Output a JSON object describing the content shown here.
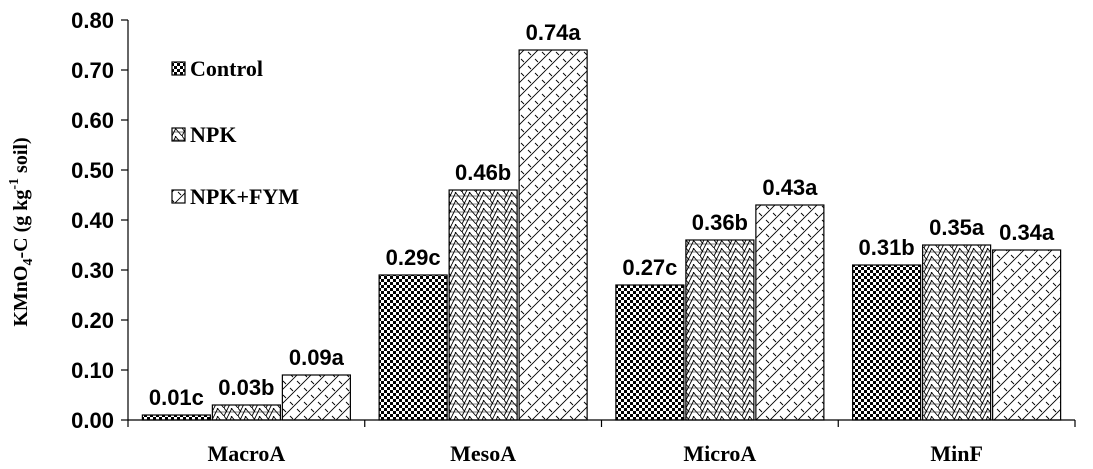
{
  "chart_data": {
    "type": "bar",
    "categories": [
      "MacroA",
      "MesoA",
      "MicroA",
      "MinF"
    ],
    "series": [
      {
        "name": "Control",
        "values": [
          0.01,
          0.29,
          0.27,
          0.31
        ],
        "labels": [
          "0.01c",
          "0.29c",
          "0.27c",
          "0.31b"
        ],
        "pattern": "checker"
      },
      {
        "name": "NPK",
        "values": [
          0.03,
          0.46,
          0.36,
          0.35
        ],
        "labels": [
          "0.03b",
          "0.46b",
          "0.36b",
          "0.35a"
        ],
        "pattern": "weave"
      },
      {
        "name": "NPK+FYM",
        "values": [
          0.09,
          0.74,
          0.43,
          0.34
        ],
        "labels": [
          "0.09a",
          "0.74a",
          "0.43a",
          "0.34a"
        ],
        "pattern": "diagonal"
      }
    ],
    "ylim": [
      0,
      0.8
    ],
    "yticks": [
      "0.00",
      "0.10",
      "0.20",
      "0.30",
      "0.40",
      "0.50",
      "0.60",
      "0.70",
      "0.80"
    ],
    "ylabel": {
      "main": "KMnO",
      "sub": "4",
      "mid": "-C (g kg",
      "sup": "-1",
      "end": " soil)"
    },
    "xlabel": "",
    "legend": "top-left",
    "grid": false
  }
}
